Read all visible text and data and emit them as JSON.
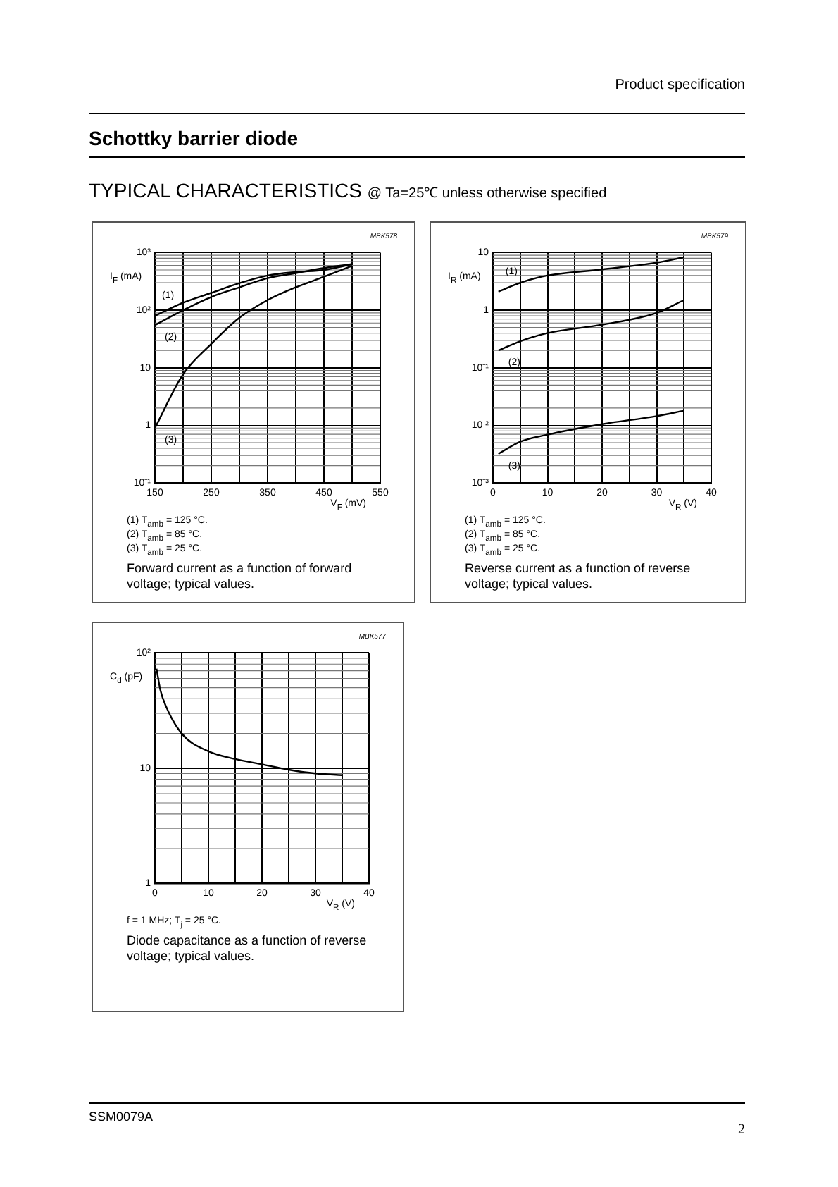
{
  "chart_data": [
    {
      "type": "other",
      "title": "Schottky barrier diode",
      "subtitle": "TYPICAL CHARACTERISTICS @ Ta=25℃ unless otherwise specified",
      "annotations": [
        "Product specification",
        "SSM0079A",
        "2"
      ]
    },
    {
      "type": "line",
      "title": "Forward current as a function of forward voltage; typical values.",
      "xlabel": "V$_{F}$ (mV)",
      "ylabel": "I$_{F}$ (mA)",
      "log": "y",
      "grid": true,
      "legend": false,
      "marker": "none",
      "line_style": "solid",
      "xlim": [
        150,
        550
      ],
      "xticks": [
        150,
        {
          "value": 200,
          "label": null
        },
        250,
        {
          "value": 300,
          "label": null
        },
        350,
        {
          "value": 400,
          "label": null
        },
        450,
        {
          "value": 500,
          "label": null
        },
        550
      ],
      "ylim": [
        0.1,
        1000
      ],
      "yticks": [
        {
          "value": 0.1,
          "label": "10⁻¹"
        },
        {
          "value": 1,
          "label": "1"
        },
        {
          "value": 10,
          "label": "10"
        },
        {
          "value": 100,
          "label": "10²"
        },
        {
          "value": 1000,
          "label": "10³"
        }
      ],
      "x": [
        150,
        200,
        250,
        300,
        350,
        400,
        450,
        500
      ],
      "series": [
        {
          "name": "(1)",
          "color": "#000000",
          "values": [
            80,
            135,
            200,
            295,
            400,
            460,
            500,
            630
          ]
        },
        {
          "name": "(2)",
          "color": "#000000",
          "values": [
            55,
            100,
            170,
            250,
            360,
            440,
            540,
            630
          ]
        },
        {
          "name": "(3)",
          "color": "#000000",
          "values": [
            0.9,
            7.7,
            26,
            74,
            150,
            250,
            380,
            590
          ]
        }
      ],
      "annotations": [
        "MBK578",
        "(1)  T$_{amb}$ = 125 °C.",
        "(2)  T$_{amb}$ = 85 °C.",
        "(3)  T$_{amb}$ = 25 °C."
      ]
    },
    {
      "type": "line",
      "title": "Reverse current as a function of reverse voltage; typical values.",
      "xlabel": "V$_{R}$ (V)",
      "ylabel": "I$_{R}$ (mA)",
      "log": "y",
      "grid": true,
      "legend": false,
      "marker": "none",
      "line_style": "solid",
      "xlim": [
        0,
        40
      ],
      "xticks": [
        0,
        {
          "value": 5,
          "label": null
        },
        10,
        {
          "value": 15,
          "label": null
        },
        20,
        {
          "value": 25,
          "label": null
        },
        30,
        {
          "value": 35,
          "label": null
        },
        40
      ],
      "ylim": [
        0.001,
        10
      ],
      "yticks": [
        {
          "value": 0.001,
          "label": "10⁻³"
        },
        {
          "value": 0.01,
          "label": "10⁻²"
        },
        {
          "value": 0.1,
          "label": "10⁻¹"
        },
        {
          "value": 1,
          "label": "1"
        },
        {
          "value": 10,
          "label": "10"
        }
      ],
      "x": [
        1,
        5,
        10,
        20,
        30,
        35
      ],
      "series": [
        {
          "name": "(1)",
          "color": "#000000",
          "values": [
            2.1,
            3.0,
            4.0,
            5.1,
            6.7,
            8.3
          ]
        },
        {
          "name": "(2)",
          "color": "#000000",
          "values": [
            0.2,
            0.29,
            0.4,
            0.56,
            0.9,
            1.5
          ]
        },
        {
          "name": "(3)",
          "color": "#000000",
          "values": [
            0.0032,
            0.0052,
            0.0069,
            0.0105,
            0.0145,
            0.018
          ]
        }
      ],
      "annotations": [
        "MBK579",
        "(1)  T$_{amb}$ = 125 °C.",
        "(2)  T$_{amb}$ = 85 °C.",
        "(3)  T$_{amb}$ = 25 °C."
      ]
    },
    {
      "type": "line",
      "title": "Diode capacitance as a function of reverse voltage; typical values.",
      "xlabel": "V$_{R}$ (V)",
      "ylabel": "C$_{d}$ (pF)",
      "log": "y",
      "grid": true,
      "legend": false,
      "marker": "none",
      "line_style": "solid",
      "xlim": [
        0,
        40
      ],
      "xticks": [
        0,
        {
          "value": 5,
          "label": null
        },
        10,
        {
          "value": 15,
          "label": null
        },
        20,
        {
          "value": 25,
          "label": null
        },
        30,
        {
          "value": 35,
          "label": null
        },
        40
      ],
      "ylim": [
        1,
        100
      ],
      "yticks": [
        {
          "value": 1,
          "label": "1"
        },
        {
          "value": 10,
          "label": "10"
        },
        {
          "value": 100,
          "label": "10²"
        }
      ],
      "x": [
        0.3,
        1,
        2,
        5,
        10,
        15,
        20,
        25,
        30,
        35
      ],
      "series": [
        {
          "color": "#000000",
          "values": [
            73,
            48,
            35,
            20,
            14,
            12,
            10.8,
            9.7,
            9.0,
            8.7
          ]
        }
      ],
      "annotations": [
        "MBK577",
        "f = 1 MHz; T$_{j}$ = 25 °C."
      ]
    }
  ]
}
